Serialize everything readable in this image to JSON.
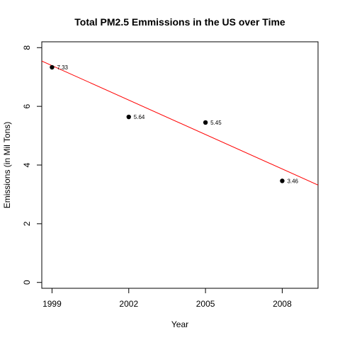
{
  "chart_data": {
    "type": "scatter",
    "title": "Total PM2.5 Emmissions in the US over Time",
    "xlabel": "Year",
    "ylabel": "Emissions (in Mil Tons)",
    "xlim": [
      1998.6,
      2009.4
    ],
    "ylim": [
      -0.2,
      8.2
    ],
    "x_ticks": [
      1999,
      2002,
      2005,
      2008
    ],
    "x_tick_labels": [
      "1999",
      "2002",
      "2005",
      "2008"
    ],
    "y_ticks": [
      0,
      2,
      4,
      6,
      8
    ],
    "y_tick_labels": [
      "0",
      "2",
      "4",
      "6",
      "8"
    ],
    "series": [
      {
        "x": [
          1999,
          2002,
          2005,
          2008
        ],
        "y": [
          7.33,
          5.64,
          5.45,
          3.46
        ],
        "labels": [
          "7.33",
          "5.64",
          "5.45",
          "3.46"
        ],
        "color": "#000000"
      }
    ],
    "trend_line": {
      "color": "#ff0000",
      "slope": -0.39133,
      "intercept": 789.6568
    },
    "grid": false,
    "legend": "none"
  }
}
